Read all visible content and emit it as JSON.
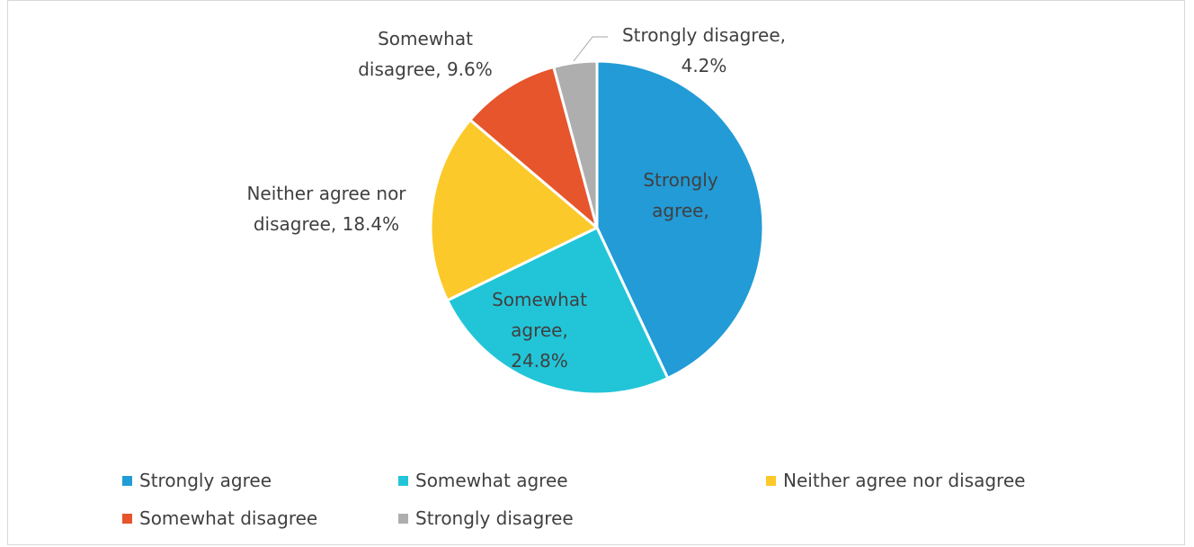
{
  "chart_data": {
    "type": "pie",
    "title": "",
    "slices": [
      {
        "label": "Strongly agree",
        "value": 43.0,
        "display": "Strongly agree, 43.0%",
        "color": "#229BD7"
      },
      {
        "label": "Somewhat agree",
        "value": 24.8,
        "display": "Somewhat agree, 24.8%",
        "color": "#22C5D8"
      },
      {
        "label": "Neither agree nor disagree",
        "value": 18.4,
        "display": "Neither agree nor disagree, 18.4%",
        "color": "#FBC92A"
      },
      {
        "label": "Somewhat disagree",
        "value": 9.6,
        "display": "Somewhat disagree, 9.6%",
        "color": "#E6552C"
      },
      {
        "label": "Strongly disagree",
        "value": 4.2,
        "display": "Strongly disagree, 4.2%",
        "color": "#AEAEAE"
      }
    ],
    "legend": {
      "position": "bottom",
      "entries": [
        "Strongly agree",
        "Somewhat agree",
        "Neither agree nor disagree",
        "Somewhat disagree",
        "Strongly disagree"
      ]
    }
  }
}
